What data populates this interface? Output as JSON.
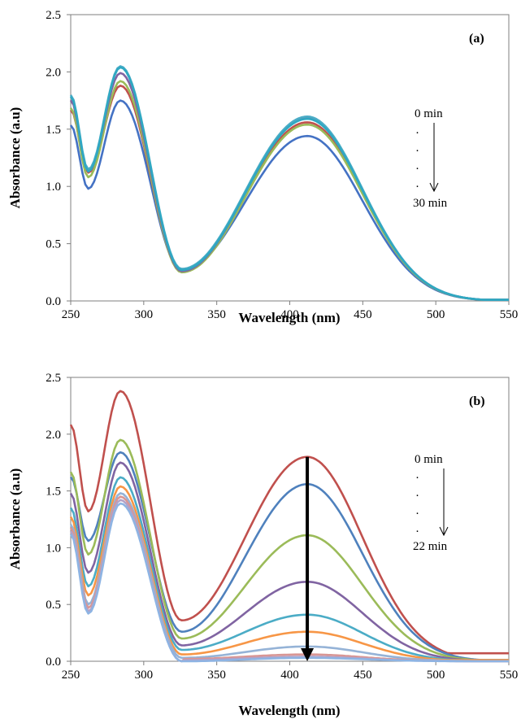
{
  "chart_data": [
    {
      "type": "line",
      "panel_label": "(a)",
      "xlabel": "Wavelength (nm)",
      "ylabel": "Absorbance (a.u)",
      "xlim": [
        250,
        550
      ],
      "ylim": [
        0,
        2.5
      ],
      "x_ticks": [
        "250",
        "300",
        "350",
        "400",
        "450",
        "500",
        "550"
      ],
      "y_ticks": [
        "0.0",
        "0.5",
        "1.0",
        "1.5",
        "2.0",
        "2.5"
      ],
      "annotation": {
        "start": "0 min",
        "dots": [
          "·",
          "·",
          "·",
          "·"
        ],
        "end": "30 min"
      },
      "grid": false,
      "series": [
        {
          "color": "#4472C4",
          "min1": 0.98,
          "peak1": 1.75,
          "min2": 0.27,
          "peak2": 1.44
        },
        {
          "color": "#C0504D",
          "min1": 1.12,
          "peak1": 1.88,
          "min2": 0.26,
          "peak2": 1.56
        },
        {
          "color": "#9BBB59",
          "min1": 1.08,
          "peak1": 1.92,
          "min2": 0.25,
          "peak2": 1.54
        },
        {
          "color": "#8064A2",
          "min1": 1.14,
          "peak1": 1.99,
          "min2": 0.26,
          "peak2": 1.6
        },
        {
          "color": "#4BACC6",
          "min1": 1.15,
          "peak1": 2.05,
          "min2": 0.28,
          "peak2": 1.61
        },
        {
          "color": "#2FA8C2",
          "min1": 1.13,
          "peak1": 2.04,
          "min2": 0.27,
          "peak2": 1.59
        }
      ]
    },
    {
      "type": "line",
      "panel_label": "(b)",
      "xlabel": "Wavelength (nm)",
      "ylabel": "Absorbance (a.u)",
      "xlim": [
        250,
        550
      ],
      "ylim": [
        0,
        2.5
      ],
      "x_ticks": [
        "250",
        "300",
        "350",
        "400",
        "450",
        "500",
        "550"
      ],
      "y_ticks": [
        "0.0",
        "0.5",
        "1.0",
        "1.5",
        "2.0",
        "2.5"
      ],
      "annotation": {
        "start": "0 min",
        "dots": [
          "·",
          "·",
          "·",
          "·"
        ],
        "end": "22 min"
      },
      "arrow": {
        "x": 412,
        "from": 1.8,
        "to": 0.0
      },
      "grid": false,
      "series": [
        {
          "color": "#C0504D",
          "min1": 1.32,
          "peak1": 2.38,
          "min2": 0.36,
          "peak2": 1.8
        },
        {
          "color": "#4F81BD",
          "min1": 1.06,
          "peak1": 1.84,
          "min2": 0.26,
          "peak2": 1.56
        },
        {
          "color": "#9BBB59",
          "min1": 0.94,
          "peak1": 1.95,
          "min2": 0.2,
          "peak2": 1.11
        },
        {
          "color": "#8064A2",
          "min1": 0.78,
          "peak1": 1.75,
          "min2": 0.14,
          "peak2": 0.7
        },
        {
          "color": "#4BACC6",
          "min1": 0.66,
          "peak1": 1.62,
          "min2": 0.1,
          "peak2": 0.41
        },
        {
          "color": "#F79646",
          "min1": 0.58,
          "peak1": 1.54,
          "min2": 0.06,
          "peak2": 0.26
        },
        {
          "color": "#95B3D7",
          "min1": 0.5,
          "peak1": 1.48,
          "min2": 0.03,
          "peak2": 0.13
        },
        {
          "color": "#D99694",
          "min1": 0.47,
          "peak1": 1.45,
          "min2": 0.02,
          "peak2": 0.06
        },
        {
          "color": "#B3A2C7",
          "min1": 0.44,
          "peak1": 1.42,
          "min2": 0.01,
          "peak2": 0.04
        },
        {
          "color": "#8EB4E3",
          "min1": 0.42,
          "peak1": 1.39,
          "min2": 0.0,
          "peak2": 0.03
        }
      ]
    }
  ]
}
